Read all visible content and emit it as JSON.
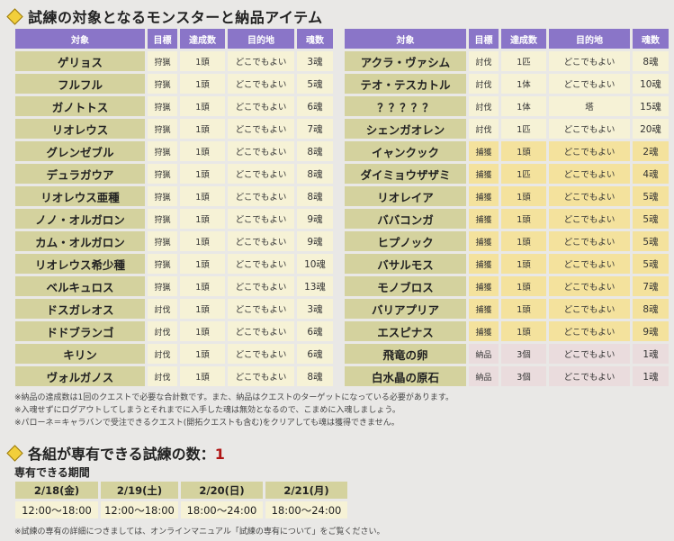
{
  "section1_title": "試練の対象となるモンスターと納品アイテム",
  "headers": [
    "対象",
    "目標",
    "達成数",
    "目的地",
    "魂数"
  ],
  "left_rows": [
    {
      "name": "ゲリョス",
      "goal": "狩猟",
      "count": "1頭",
      "dest": "どこでもよい",
      "soul": "3魂",
      "type": "normal"
    },
    {
      "name": "フルフル",
      "goal": "狩猟",
      "count": "1頭",
      "dest": "どこでもよい",
      "soul": "5魂",
      "type": "normal"
    },
    {
      "name": "ガノトトス",
      "goal": "狩猟",
      "count": "1頭",
      "dest": "どこでもよい",
      "soul": "6魂",
      "type": "normal"
    },
    {
      "name": "リオレウス",
      "goal": "狩猟",
      "count": "1頭",
      "dest": "どこでもよい",
      "soul": "7魂",
      "type": "normal"
    },
    {
      "name": "グレンゼブル",
      "goal": "狩猟",
      "count": "1頭",
      "dest": "どこでもよい",
      "soul": "8魂",
      "type": "normal"
    },
    {
      "name": "デュラガウア",
      "goal": "狩猟",
      "count": "1頭",
      "dest": "どこでもよい",
      "soul": "8魂",
      "type": "normal"
    },
    {
      "name": "リオレウス亜種",
      "goal": "狩猟",
      "count": "1頭",
      "dest": "どこでもよい",
      "soul": "8魂",
      "type": "normal"
    },
    {
      "name": "ノノ・オルガロン",
      "goal": "狩猟",
      "count": "1頭",
      "dest": "どこでもよい",
      "soul": "9魂",
      "type": "normal"
    },
    {
      "name": "カム・オルガロン",
      "goal": "狩猟",
      "count": "1頭",
      "dest": "どこでもよい",
      "soul": "9魂",
      "type": "normal"
    },
    {
      "name": "リオレウス希少種",
      "goal": "狩猟",
      "count": "1頭",
      "dest": "どこでもよい",
      "soul": "10魂",
      "type": "normal"
    },
    {
      "name": "ベルキュロス",
      "goal": "狩猟",
      "count": "1頭",
      "dest": "どこでもよい",
      "soul": "13魂",
      "type": "normal"
    },
    {
      "name": "ドスガレオス",
      "goal": "討伐",
      "count": "1頭",
      "dest": "どこでもよい",
      "soul": "3魂",
      "type": "normal"
    },
    {
      "name": "ドドブランゴ",
      "goal": "討伐",
      "count": "1頭",
      "dest": "どこでもよい",
      "soul": "6魂",
      "type": "normal"
    },
    {
      "name": "キリン",
      "goal": "討伐",
      "count": "1頭",
      "dest": "どこでもよい",
      "soul": "6魂",
      "type": "normal"
    },
    {
      "name": "ヴォルガノス",
      "goal": "討伐",
      "count": "1頭",
      "dest": "どこでもよい",
      "soul": "8魂",
      "type": "normal"
    }
  ],
  "right_rows": [
    {
      "name": "アクラ・ヴァシム",
      "goal": "討伐",
      "count": "1匹",
      "dest": "どこでもよい",
      "soul": "8魂",
      "type": "normal"
    },
    {
      "name": "テオ・テスカトル",
      "goal": "討伐",
      "count": "1体",
      "dest": "どこでもよい",
      "soul": "10魂",
      "type": "normal"
    },
    {
      "name": "？？？？？",
      "goal": "討伐",
      "count": "1体",
      "dest": "塔",
      "soul": "15魂",
      "type": "normal"
    },
    {
      "name": "シェンガオレン",
      "goal": "討伐",
      "count": "1匹",
      "dest": "どこでもよい",
      "soul": "20魂",
      "type": "normal"
    },
    {
      "name": "イャンクック",
      "goal": "捕獲",
      "count": "1頭",
      "dest": "どこでもよい",
      "soul": "2魂",
      "type": "capture"
    },
    {
      "name": "ダイミョウザザミ",
      "goal": "捕獲",
      "count": "1匹",
      "dest": "どこでもよい",
      "soul": "4魂",
      "type": "capture"
    },
    {
      "name": "リオレイア",
      "goal": "捕獲",
      "count": "1頭",
      "dest": "どこでもよい",
      "soul": "5魂",
      "type": "capture"
    },
    {
      "name": "ババコンガ",
      "goal": "捕獲",
      "count": "1頭",
      "dest": "どこでもよい",
      "soul": "5魂",
      "type": "capture"
    },
    {
      "name": "ヒプノック",
      "goal": "捕獲",
      "count": "1頭",
      "dest": "どこでもよい",
      "soul": "5魂",
      "type": "capture"
    },
    {
      "name": "バサルモス",
      "goal": "捕獲",
      "count": "1頭",
      "dest": "どこでもよい",
      "soul": "5魂",
      "type": "capture"
    },
    {
      "name": "モノブロス",
      "goal": "捕獲",
      "count": "1頭",
      "dest": "どこでもよい",
      "soul": "7魂",
      "type": "capture"
    },
    {
      "name": "バリアプリア",
      "goal": "捕獲",
      "count": "1頭",
      "dest": "どこでもよい",
      "soul": "8魂",
      "type": "capture"
    },
    {
      "name": "エスピナス",
      "goal": "捕獲",
      "count": "1頭",
      "dest": "どこでもよい",
      "soul": "9魂",
      "type": "capture"
    },
    {
      "name": "飛竜の卵",
      "goal": "納品",
      "count": "3個",
      "dest": "どこでもよい",
      "soul": "1魂",
      "type": "deliver"
    },
    {
      "name": "白水晶の原石",
      "goal": "納品",
      "count": "3個",
      "dest": "どこでもよい",
      "soul": "1魂",
      "type": "deliver"
    }
  ],
  "notes": [
    "※納品の達成数は1回のクエストで必要な合計数です。また、納品はクエストのターゲットになっている必要があります。",
    "※入魂せずにログアウトしてしまうとそれまでに入手した魂は無効となるので、こまめに入魂しましょう。",
    "※パローネ＝キャラバンで受注できるクエスト(開拓クエストも含む)をクリアしても魂は獲得できません。"
  ],
  "section2_title_prefix": "各組が専有できる試練の数：",
  "section2_count": "1",
  "period_label": "専有できる期間",
  "period_dates": [
    "2/18(金)",
    "2/19(土)",
    "2/20(日)",
    "2/21(月)"
  ],
  "period_times": [
    "12:00～18:00",
    "12:00～18:00",
    "18:00～24:00",
    "18:00～24:00"
  ],
  "footer_note": "※試練の専有の詳細につきましては、オンラインマニュアル「試練の専有について」をご覧ください。",
  "colors": {
    "header": "#8a75c8",
    "name_cell": "#d4d29e",
    "normal": "#f6f2d6",
    "capture": "#f4e29d",
    "deliver": "#eadcdd"
  }
}
